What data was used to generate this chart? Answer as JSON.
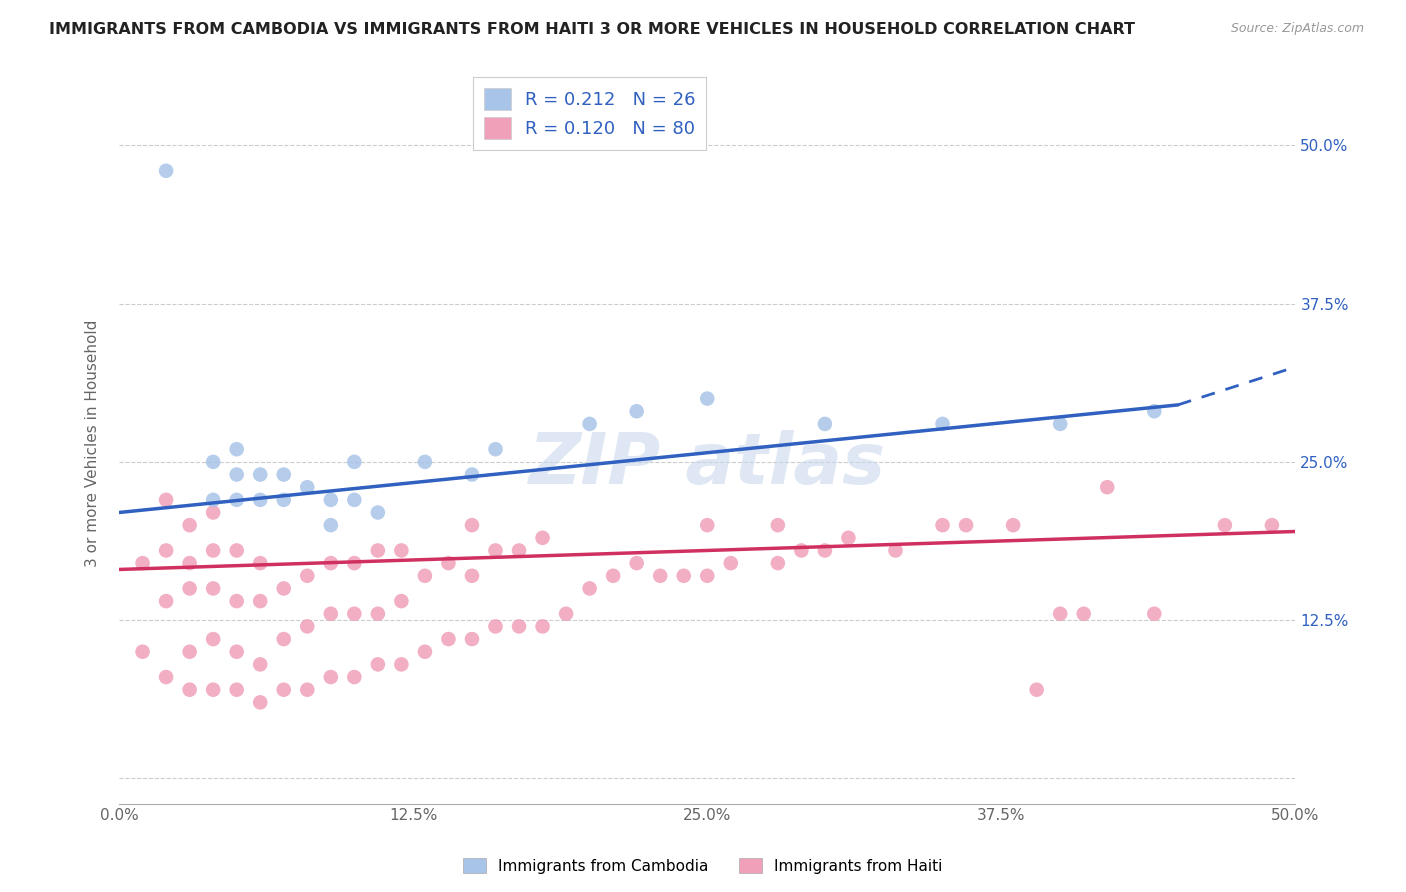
{
  "title": "IMMIGRANTS FROM CAMBODIA VS IMMIGRANTS FROM HAITI 3 OR MORE VEHICLES IN HOUSEHOLD CORRELATION CHART",
  "source": "Source: ZipAtlas.com",
  "ylabel": "3 or more Vehicles in Household",
  "xlim": [
    0.0,
    0.5
  ],
  "ylim": [
    -0.02,
    0.55
  ],
  "xtick_positions": [
    0.0,
    0.125,
    0.25,
    0.375,
    0.5
  ],
  "xtick_labels": [
    "0.0%",
    "12.5%",
    "25.0%",
    "37.5%",
    "50.0%"
  ],
  "ytick_positions": [
    0.0,
    0.125,
    0.25,
    0.375,
    0.5
  ],
  "ytick_labels_right": [
    "",
    "12.5%",
    "25.0%",
    "37.5%",
    "50.0%"
  ],
  "cambodia_color": "#a8c4e8",
  "haiti_color": "#f0a0b8",
  "regression_cambodia_color": "#3060c0",
  "regression_haiti_color": "#d03060",
  "legend_r_cambodia": "R = 0.212",
  "legend_n_cambodia": "N = 26",
  "legend_r_haiti": "R = 0.120",
  "legend_n_haiti": "N = 80",
  "cambodia_x": [
    0.02,
    0.04,
    0.04,
    0.05,
    0.05,
    0.05,
    0.06,
    0.06,
    0.07,
    0.07,
    0.08,
    0.09,
    0.09,
    0.1,
    0.1,
    0.11,
    0.13,
    0.15,
    0.16,
    0.2,
    0.22,
    0.25,
    0.3,
    0.35,
    0.4,
    0.44
  ],
  "cambodia_y": [
    0.48,
    0.22,
    0.25,
    0.22,
    0.24,
    0.26,
    0.22,
    0.24,
    0.22,
    0.24,
    0.23,
    0.2,
    0.22,
    0.22,
    0.25,
    0.21,
    0.25,
    0.24,
    0.26,
    0.28,
    0.29,
    0.3,
    0.28,
    0.28,
    0.28,
    0.29
  ],
  "haiti_x": [
    0.01,
    0.01,
    0.02,
    0.02,
    0.02,
    0.02,
    0.03,
    0.03,
    0.03,
    0.03,
    0.03,
    0.04,
    0.04,
    0.04,
    0.04,
    0.04,
    0.05,
    0.05,
    0.05,
    0.05,
    0.06,
    0.06,
    0.06,
    0.06,
    0.07,
    0.07,
    0.07,
    0.08,
    0.08,
    0.08,
    0.09,
    0.09,
    0.09,
    0.1,
    0.1,
    0.1,
    0.11,
    0.11,
    0.11,
    0.12,
    0.12,
    0.12,
    0.13,
    0.13,
    0.14,
    0.14,
    0.15,
    0.15,
    0.15,
    0.16,
    0.16,
    0.17,
    0.17,
    0.18,
    0.18,
    0.19,
    0.2,
    0.21,
    0.22,
    0.23,
    0.24,
    0.25,
    0.25,
    0.26,
    0.28,
    0.28,
    0.29,
    0.3,
    0.31,
    0.33,
    0.35,
    0.36,
    0.38,
    0.39,
    0.4,
    0.41,
    0.42,
    0.44,
    0.47,
    0.49
  ],
  "haiti_y": [
    0.1,
    0.17,
    0.08,
    0.14,
    0.18,
    0.22,
    0.07,
    0.1,
    0.15,
    0.17,
    0.2,
    0.07,
    0.11,
    0.15,
    0.18,
    0.21,
    0.07,
    0.1,
    0.14,
    0.18,
    0.06,
    0.09,
    0.14,
    0.17,
    0.07,
    0.11,
    0.15,
    0.07,
    0.12,
    0.16,
    0.08,
    0.13,
    0.17,
    0.08,
    0.13,
    0.17,
    0.09,
    0.13,
    0.18,
    0.09,
    0.14,
    0.18,
    0.1,
    0.16,
    0.11,
    0.17,
    0.11,
    0.16,
    0.2,
    0.12,
    0.18,
    0.12,
    0.18,
    0.12,
    0.19,
    0.13,
    0.15,
    0.16,
    0.17,
    0.16,
    0.16,
    0.16,
    0.2,
    0.17,
    0.17,
    0.2,
    0.18,
    0.18,
    0.19,
    0.18,
    0.2,
    0.2,
    0.2,
    0.07,
    0.13,
    0.13,
    0.23,
    0.13,
    0.2,
    0.2
  ],
  "cam_line_solid_end": 0.45,
  "cam_line_x0": 0.0,
  "cam_line_y0": 0.21,
  "cam_line_x1": 0.45,
  "cam_line_y1": 0.295,
  "cam_line_x1_dash": 0.5,
  "cam_line_y1_dash": 0.325,
  "hai_line_x0": 0.0,
  "hai_line_y0": 0.165,
  "hai_line_x1": 0.5,
  "hai_line_y1": 0.195
}
